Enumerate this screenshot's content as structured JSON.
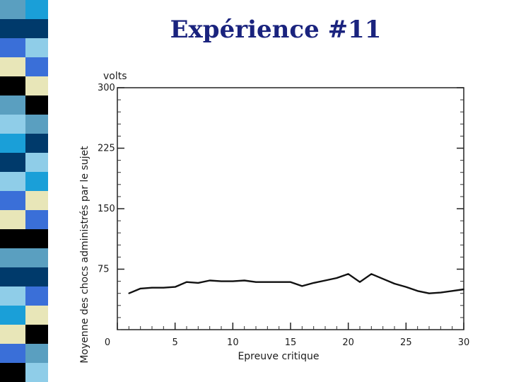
{
  "slide": {
    "title": "Expérience #11",
    "stripe_colors": [
      "#5a9fc0",
      "#003a6b",
      "#3a6fd8",
      "#e8e6b8",
      "#000000",
      "#5a9fc0",
      "#8fcde8",
      "#1a9fd8",
      "#003a6b",
      "#8fcde8",
      "#3a6fd8",
      "#e8e6b8",
      "#000000",
      "#5a9fc0",
      "#003a6b",
      "#8fcde8",
      "#1a9fd8",
      "#e8e6b8",
      "#3a6fd8",
      "#000000"
    ]
  },
  "chart_data": {
    "type": "line",
    "title": "",
    "xlabel": "Epreuve critique",
    "ylabel": "Moyenne des chocs administrés par le sujet",
    "yunit": "volts",
    "xlim": [
      0,
      30
    ],
    "ylim": [
      0,
      300
    ],
    "xticks": [
      0,
      5,
      10,
      15,
      20,
      25,
      30
    ],
    "yticks": [
      75,
      150,
      225,
      300
    ],
    "grid": false,
    "series": [
      {
        "name": "",
        "x": [
          1,
          2,
          3,
          4,
          5,
          6,
          7,
          8,
          9,
          10,
          11,
          12,
          13,
          14,
          15,
          16,
          17,
          18,
          19,
          20,
          21,
          22,
          23,
          24,
          25,
          26,
          27,
          28,
          29,
          30
        ],
        "y": [
          45,
          51,
          52,
          52,
          53,
          59,
          58,
          61,
          60,
          60,
          61,
          59,
          59,
          59,
          59,
          54,
          58,
          61,
          64,
          69,
          59,
          69,
          63,
          57,
          53,
          48,
          45,
          46,
          48,
          50
        ]
      }
    ],
    "color": "#111111"
  }
}
